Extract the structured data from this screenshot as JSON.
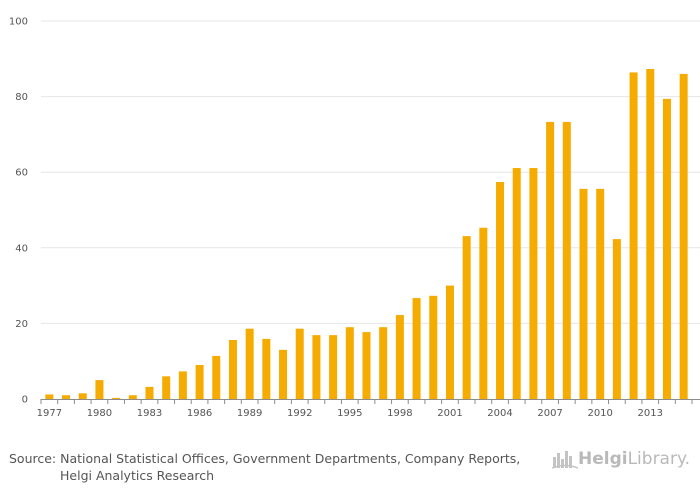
{
  "chart_data": {
    "type": "bar",
    "title": "",
    "xlabel": "",
    "ylabel": "",
    "ylim": [
      0,
      100
    ],
    "yticks": [
      "0",
      "20",
      "40",
      "60",
      "80",
      "100"
    ],
    "categories": [
      "1977",
      "1978",
      "1979",
      "1980",
      "1981",
      "1982",
      "1983",
      "1984",
      "1985",
      "1986",
      "1987",
      "1988",
      "1989",
      "1990",
      "1991",
      "1992",
      "1993",
      "1994",
      "1995",
      "1996",
      "1997",
      "1998",
      "1999",
      "2000",
      "2001",
      "2002",
      "2003",
      "2004",
      "2005",
      "2006",
      "2007",
      "2008",
      "2009",
      "2010",
      "2011",
      "2012",
      "2013",
      "2014",
      "2015"
    ],
    "xtick_labels": [
      "1977",
      "1980",
      "1983",
      "1986",
      "1989",
      "1992",
      "1995",
      "1998",
      "2001",
      "2004",
      "2007",
      "2010",
      "2013"
    ],
    "values": [
      1.2,
      1.0,
      1.5,
      5.0,
      0.3,
      1.0,
      3.2,
      6.0,
      7.3,
      9.0,
      11.4,
      15.6,
      18.6,
      15.9,
      13.0,
      18.6,
      16.9,
      16.9,
      19.0,
      17.7,
      19.0,
      22.2,
      26.7,
      27.3,
      30.0,
      43.1,
      45.3,
      57.4,
      61.1,
      61.1,
      73.3,
      73.3,
      55.6,
      55.6,
      42.3,
      86.4,
      87.3,
      79.4,
      86.0
    ],
    "colors": {
      "bar": "#f5ab00",
      "grid": "#e6e6e6",
      "axis": "#8c8c8c"
    }
  },
  "footer": {
    "source_line1": "Source: National Statistical Offices, Government Departments, Company Reports,",
    "source_line2": "Helgi Analytics Research",
    "brand_bold": "Helgi",
    "brand_light": "Library."
  }
}
